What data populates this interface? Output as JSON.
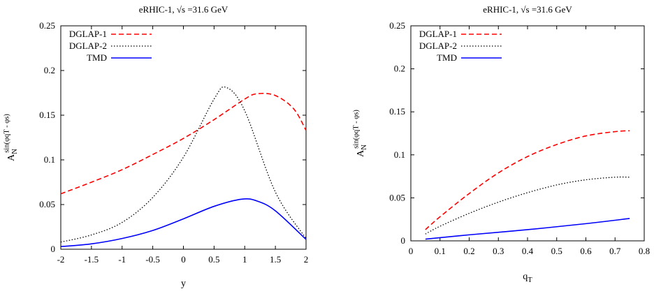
{
  "chart_data": [
    {
      "type": "line",
      "title": "eRHIC-1, √s =31.6 GeV",
      "xlabel": "y",
      "ylabel": "A_N^{sin(φ_qT - φ_s)}",
      "xlim": [
        -2,
        2
      ],
      "ylim": [
        0,
        0.25
      ],
      "xticks": [
        "-2",
        "-1.5",
        "-1",
        "-0.5",
        "0",
        "0.5",
        "1",
        "1.5",
        "2"
      ],
      "yticks": [
        "0",
        "0.05",
        "0.1",
        "0.15",
        "0.2",
        "0.25"
      ],
      "grid": false,
      "legend_position": "top-left",
      "series": [
        {
          "name": "DGLAP-1",
          "color": "#ff0000",
          "style": "dashed",
          "x": [
            -2,
            -1.5,
            -1,
            -0.5,
            0,
            0.5,
            1,
            1.2,
            1.5,
            1.8,
            2
          ],
          "y": [
            0.062,
            0.075,
            0.089,
            0.106,
            0.124,
            0.145,
            0.168,
            0.174,
            0.172,
            0.157,
            0.133
          ]
        },
        {
          "name": "DGLAP-2",
          "color": "#000000",
          "style": "dotted",
          "x": [
            -2,
            -1.5,
            -1,
            -0.5,
            0,
            0.5,
            0.7,
            1,
            1.5,
            2
          ],
          "y": [
            0.008,
            0.016,
            0.03,
            0.058,
            0.103,
            0.168,
            0.181,
            0.155,
            0.064,
            0.012
          ]
        },
        {
          "name": "TMD",
          "color": "#0000ff",
          "style": "solid",
          "x": [
            -2,
            -1.5,
            -1,
            -0.5,
            0,
            0.5,
            0.95,
            1.2,
            1.5,
            2
          ],
          "y": [
            0.003,
            0.006,
            0.012,
            0.021,
            0.034,
            0.048,
            0.056,
            0.054,
            0.043,
            0.011
          ]
        }
      ]
    },
    {
      "type": "line",
      "title": "eRHIC-1, √s =31.6 GeV",
      "xlabel": "q_T",
      "ylabel": "A_N^{sin(φ_qT - φ_s)}",
      "xlim": [
        0,
        0.8
      ],
      "ylim": [
        0,
        0.25
      ],
      "xticks": [
        "0",
        "0.1",
        "0.2",
        "0.3",
        "0.4",
        "0.5",
        "0.6",
        "0.7",
        "0.8"
      ],
      "yticks": [
        "0",
        "0.05",
        "0.1",
        "0.15",
        "0.2",
        "0.25"
      ],
      "grid": false,
      "legend_position": "top-left",
      "series": [
        {
          "name": "DGLAP-1",
          "color": "#ff0000",
          "style": "dashed",
          "x": [
            0.05,
            0.1,
            0.2,
            0.3,
            0.4,
            0.5,
            0.6,
            0.7,
            0.75
          ],
          "y": [
            0.013,
            0.028,
            0.055,
            0.079,
            0.098,
            0.112,
            0.122,
            0.127,
            0.128
          ]
        },
        {
          "name": "DGLAP-2",
          "color": "#000000",
          "style": "dotted",
          "x": [
            0.05,
            0.1,
            0.2,
            0.3,
            0.4,
            0.5,
            0.6,
            0.7,
            0.75
          ],
          "y": [
            0.008,
            0.017,
            0.032,
            0.045,
            0.056,
            0.065,
            0.071,
            0.074,
            0.074
          ]
        },
        {
          "name": "TMD",
          "color": "#0000ff",
          "style": "solid",
          "x": [
            0.05,
            0.2,
            0.4,
            0.6,
            0.75
          ],
          "y": [
            0.002,
            0.007,
            0.013,
            0.02,
            0.026
          ]
        }
      ]
    }
  ]
}
